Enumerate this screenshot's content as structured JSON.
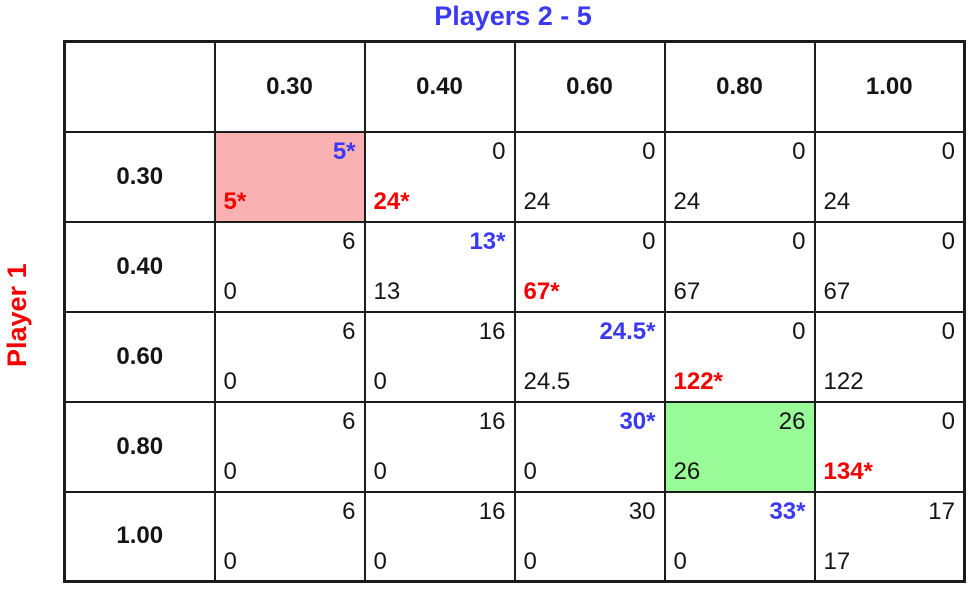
{
  "title": "Players 2 - 5",
  "row_player_label": "Player 1",
  "colors": {
    "title_blue": "#3a3af5",
    "star_blue": "#3a3af5",
    "star_red": "#f70000",
    "label_red": "#f70000",
    "pink_bg": "#f9b1b1",
    "green_bg": "#98fb98",
    "border": "#1c1c1c",
    "text_dark": "#151515"
  },
  "chart_data": {
    "type": "table",
    "title": "Players 2 - 5",
    "row_label": "Player 1",
    "column_strategies": [
      "0.30",
      "0.40",
      "0.60",
      "0.80",
      "1.00"
    ],
    "row_strategies": [
      "0.30",
      "0.40",
      "0.60",
      "0.80",
      "1.00"
    ],
    "cell_value_layout": {
      "top_right": "column players payoff",
      "bottom_left": "row player payoff"
    },
    "rows": [
      {
        "header": "0.30",
        "cells": [
          {
            "top": "5*",
            "topColor": "blue",
            "bottom": "5*",
            "bottomColor": "red",
            "bg": "pink"
          },
          {
            "top": "0",
            "topColor": "dark",
            "bottom": "24*",
            "bottomColor": "red",
            "bg": null
          },
          {
            "top": "0",
            "topColor": "dark",
            "bottom": "24",
            "bottomColor": "dark",
            "bg": null
          },
          {
            "top": "0",
            "topColor": "dark",
            "bottom": "24",
            "bottomColor": "dark",
            "bg": null
          },
          {
            "top": "0",
            "topColor": "dark",
            "bottom": "24",
            "bottomColor": "dark",
            "bg": null
          }
        ]
      },
      {
        "header": "0.40",
        "cells": [
          {
            "top": "6",
            "topColor": "dark",
            "bottom": "0",
            "bottomColor": "dark",
            "bg": null
          },
          {
            "top": "13*",
            "topColor": "blue",
            "bottom": "13",
            "bottomColor": "dark",
            "bg": null
          },
          {
            "top": "0",
            "topColor": "dark",
            "bottom": "67*",
            "bottomColor": "red",
            "bg": null
          },
          {
            "top": "0",
            "topColor": "dark",
            "bottom": "67",
            "bottomColor": "dark",
            "bg": null
          },
          {
            "top": "0",
            "topColor": "dark",
            "bottom": "67",
            "bottomColor": "dark",
            "bg": null
          }
        ]
      },
      {
        "header": "0.60",
        "cells": [
          {
            "top": "6",
            "topColor": "dark",
            "bottom": "0",
            "bottomColor": "dark",
            "bg": null
          },
          {
            "top": "16",
            "topColor": "dark",
            "bottom": "0",
            "bottomColor": "dark",
            "bg": null
          },
          {
            "top": "24.5*",
            "topColor": "blue",
            "bottom": "24.5",
            "bottomColor": "dark",
            "bg": null
          },
          {
            "top": "0",
            "topColor": "dark",
            "bottom": "122*",
            "bottomColor": "red",
            "bg": null
          },
          {
            "top": "0",
            "topColor": "dark",
            "bottom": "122",
            "bottomColor": "dark",
            "bg": null
          }
        ]
      },
      {
        "header": "0.80",
        "cells": [
          {
            "top": "6",
            "topColor": "dark",
            "bottom": "0",
            "bottomColor": "dark",
            "bg": null
          },
          {
            "top": "16",
            "topColor": "dark",
            "bottom": "0",
            "bottomColor": "dark",
            "bg": null
          },
          {
            "top": "30*",
            "topColor": "blue",
            "bottom": "0",
            "bottomColor": "dark",
            "bg": null
          },
          {
            "top": "26",
            "topColor": "dark",
            "bottom": "26",
            "bottomColor": "dark",
            "bg": "green"
          },
          {
            "top": "0",
            "topColor": "dark",
            "bottom": "134*",
            "bottomColor": "red",
            "bg": null
          }
        ]
      },
      {
        "header": "1.00",
        "cells": [
          {
            "top": "6",
            "topColor": "dark",
            "bottom": "0",
            "bottomColor": "dark",
            "bg": null
          },
          {
            "top": "16",
            "topColor": "dark",
            "bottom": "0",
            "bottomColor": "dark",
            "bg": null
          },
          {
            "top": "30",
            "topColor": "dark",
            "bottom": "0",
            "bottomColor": "dark",
            "bg": null
          },
          {
            "top": "33*",
            "topColor": "blue",
            "bottom": "0",
            "bottomColor": "dark",
            "bg": null
          },
          {
            "top": "17",
            "topColor": "dark",
            "bottom": "17",
            "bottomColor": "dark",
            "bg": null
          }
        ]
      }
    ]
  }
}
